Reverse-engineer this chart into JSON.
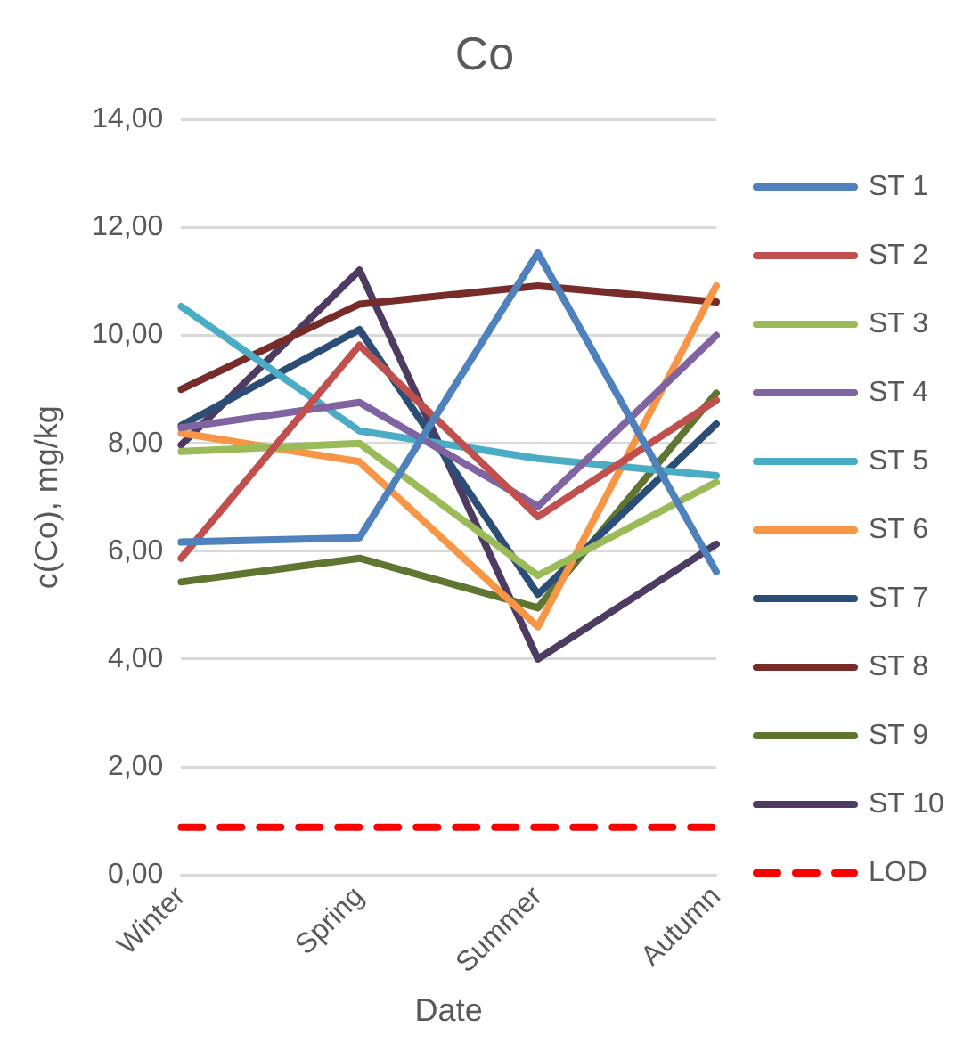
{
  "chart_data": {
    "type": "line",
    "title": "Co",
    "xlabel": "Date",
    "ylabel": "c(Co), mg/kg",
    "categories": [
      "Winter",
      "Spring",
      "Summer",
      "Autumn"
    ],
    "series": [
      {
        "name": "ST 1",
        "color": "#4f81bd",
        "values": [
          6.17,
          6.25,
          11.53,
          5.62
        ]
      },
      {
        "name": "ST 2",
        "color": "#c0504d",
        "values": [
          5.87,
          9.82,
          6.64,
          8.8
        ]
      },
      {
        "name": "ST 3",
        "color": "#9bbb59",
        "values": [
          7.85,
          8.0,
          5.55,
          7.28
        ]
      },
      {
        "name": "ST 4",
        "color": "#8064a2",
        "values": [
          8.29,
          8.76,
          6.83,
          10.0
        ]
      },
      {
        "name": "ST 5",
        "color": "#4bacc6",
        "values": [
          10.54,
          8.23,
          7.72,
          7.4
        ]
      },
      {
        "name": "ST 6",
        "color": "#f79646",
        "values": [
          8.19,
          7.66,
          4.6,
          10.92
        ]
      },
      {
        "name": "ST 7",
        "color": "#2c4d75",
        "values": [
          8.33,
          10.11,
          5.2,
          8.36
        ]
      },
      {
        "name": "ST 8",
        "color": "#772c2a",
        "values": [
          9.0,
          10.58,
          10.92,
          10.62
        ]
      },
      {
        "name": "ST 9",
        "color": "#5f7530",
        "values": [
          5.43,
          5.87,
          4.95,
          8.93
        ]
      },
      {
        "name": "ST 10",
        "color": "#4d3b62",
        "values": [
          7.97,
          11.21,
          4.0,
          6.13
        ]
      },
      {
        "name": "LOD",
        "color": "#ff0000",
        "values": [
          0.88,
          0.88,
          0.88,
          0.88
        ],
        "line_style": "dashed"
      }
    ],
    "ylim": [
      0,
      14
    ],
    "yticks": [
      {
        "value": 0,
        "label": "0,00"
      },
      {
        "value": 2,
        "label": "2,00"
      },
      {
        "value": 4,
        "label": "4,00"
      },
      {
        "value": 6,
        "label": "6,00"
      },
      {
        "value": 8,
        "label": "8,00"
      },
      {
        "value": 10,
        "label": "10,00"
      },
      {
        "value": 12,
        "label": "12,00"
      },
      {
        "value": 14,
        "label": "14,00"
      }
    ],
    "grid": "y",
    "legend": "right",
    "marker": "none",
    "line_style": "solid"
  }
}
